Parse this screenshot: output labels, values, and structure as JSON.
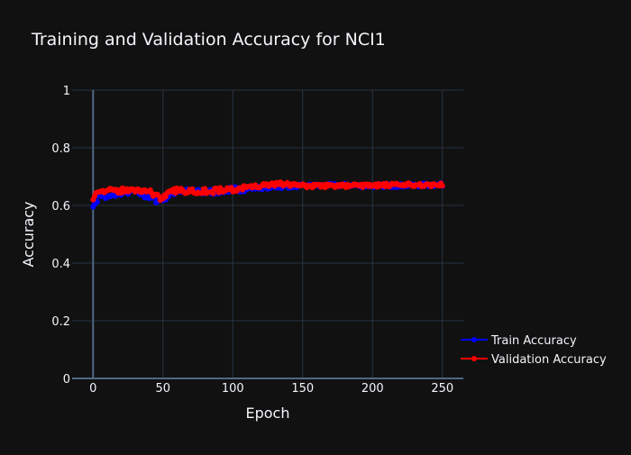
{
  "chart_data": {
    "type": "line",
    "title": "Training and Validation Accuracy for NCI1",
    "xlabel": "Epoch",
    "ylabel": "Accuracy",
    "xlim": [
      -15,
      265
    ],
    "ylim": [
      0,
      1
    ],
    "xticks": [
      0,
      50,
      100,
      150,
      200,
      250
    ],
    "yticks": [
      0,
      0.2,
      0.4,
      0.6,
      0.8,
      1
    ],
    "ytick_labels": [
      "0",
      "0.2",
      "0.4",
      "0.6",
      "0.8",
      "1"
    ],
    "grid": true,
    "legend_position": "bottom-right",
    "background": "#111111",
    "grid_color": "#283442",
    "series": [
      {
        "name": "Train Accuracy",
        "color": "#0000ff",
        "anchors": [
          [
            0,
            0.595
          ],
          [
            5,
            0.64
          ],
          [
            10,
            0.625
          ],
          [
            20,
            0.645
          ],
          [
            30,
            0.648
          ],
          [
            47,
            0.615
          ],
          [
            60,
            0.65
          ],
          [
            80,
            0.645
          ],
          [
            100,
            0.655
          ],
          [
            120,
            0.662
          ],
          [
            150,
            0.668
          ],
          [
            180,
            0.67
          ],
          [
            200,
            0.668
          ],
          [
            230,
            0.67
          ],
          [
            250,
            0.672
          ]
        ]
      },
      {
        "name": "Validation Accuracy",
        "color": "#ff0000",
        "anchors": [
          [
            0,
            0.62
          ],
          [
            3,
            0.655
          ],
          [
            10,
            0.648
          ],
          [
            20,
            0.652
          ],
          [
            40,
            0.652
          ],
          [
            47,
            0.625
          ],
          [
            60,
            0.652
          ],
          [
            80,
            0.65
          ],
          [
            100,
            0.655
          ],
          [
            115,
            0.665
          ],
          [
            135,
            0.675
          ],
          [
            150,
            0.668
          ],
          [
            180,
            0.668
          ],
          [
            210,
            0.67
          ],
          [
            250,
            0.672
          ]
        ]
      }
    ]
  }
}
